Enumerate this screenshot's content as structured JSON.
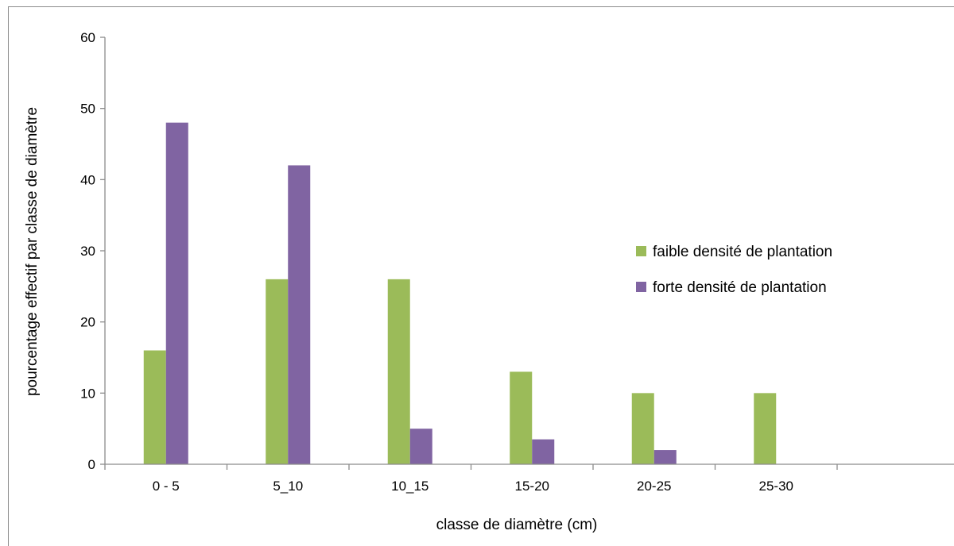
{
  "chart_data": {
    "type": "bar",
    "title": "",
    "xlabel": "classe de diamètre (cm)",
    "ylabel": "pourcentage effectif par classe de diamètre",
    "categories": [
      "0 - 5",
      "5_10",
      "10_15",
      "15-20",
      "20-25",
      "25-30",
      ""
    ],
    "series": [
      {
        "name": "faible densité de plantation",
        "color": "#9bbb59",
        "values": [
          16,
          26,
          26,
          13,
          10,
          10,
          0
        ]
      },
      {
        "name": "forte densité de plantation",
        "color": "#8064a2",
        "values": [
          48,
          42,
          5,
          3.5,
          2,
          0,
          0
        ]
      }
    ],
    "ylim": [
      0,
      60
    ],
    "yticks": [
      0,
      10,
      20,
      30,
      40,
      50,
      60
    ],
    "grid": false,
    "legend_position": "right"
  }
}
